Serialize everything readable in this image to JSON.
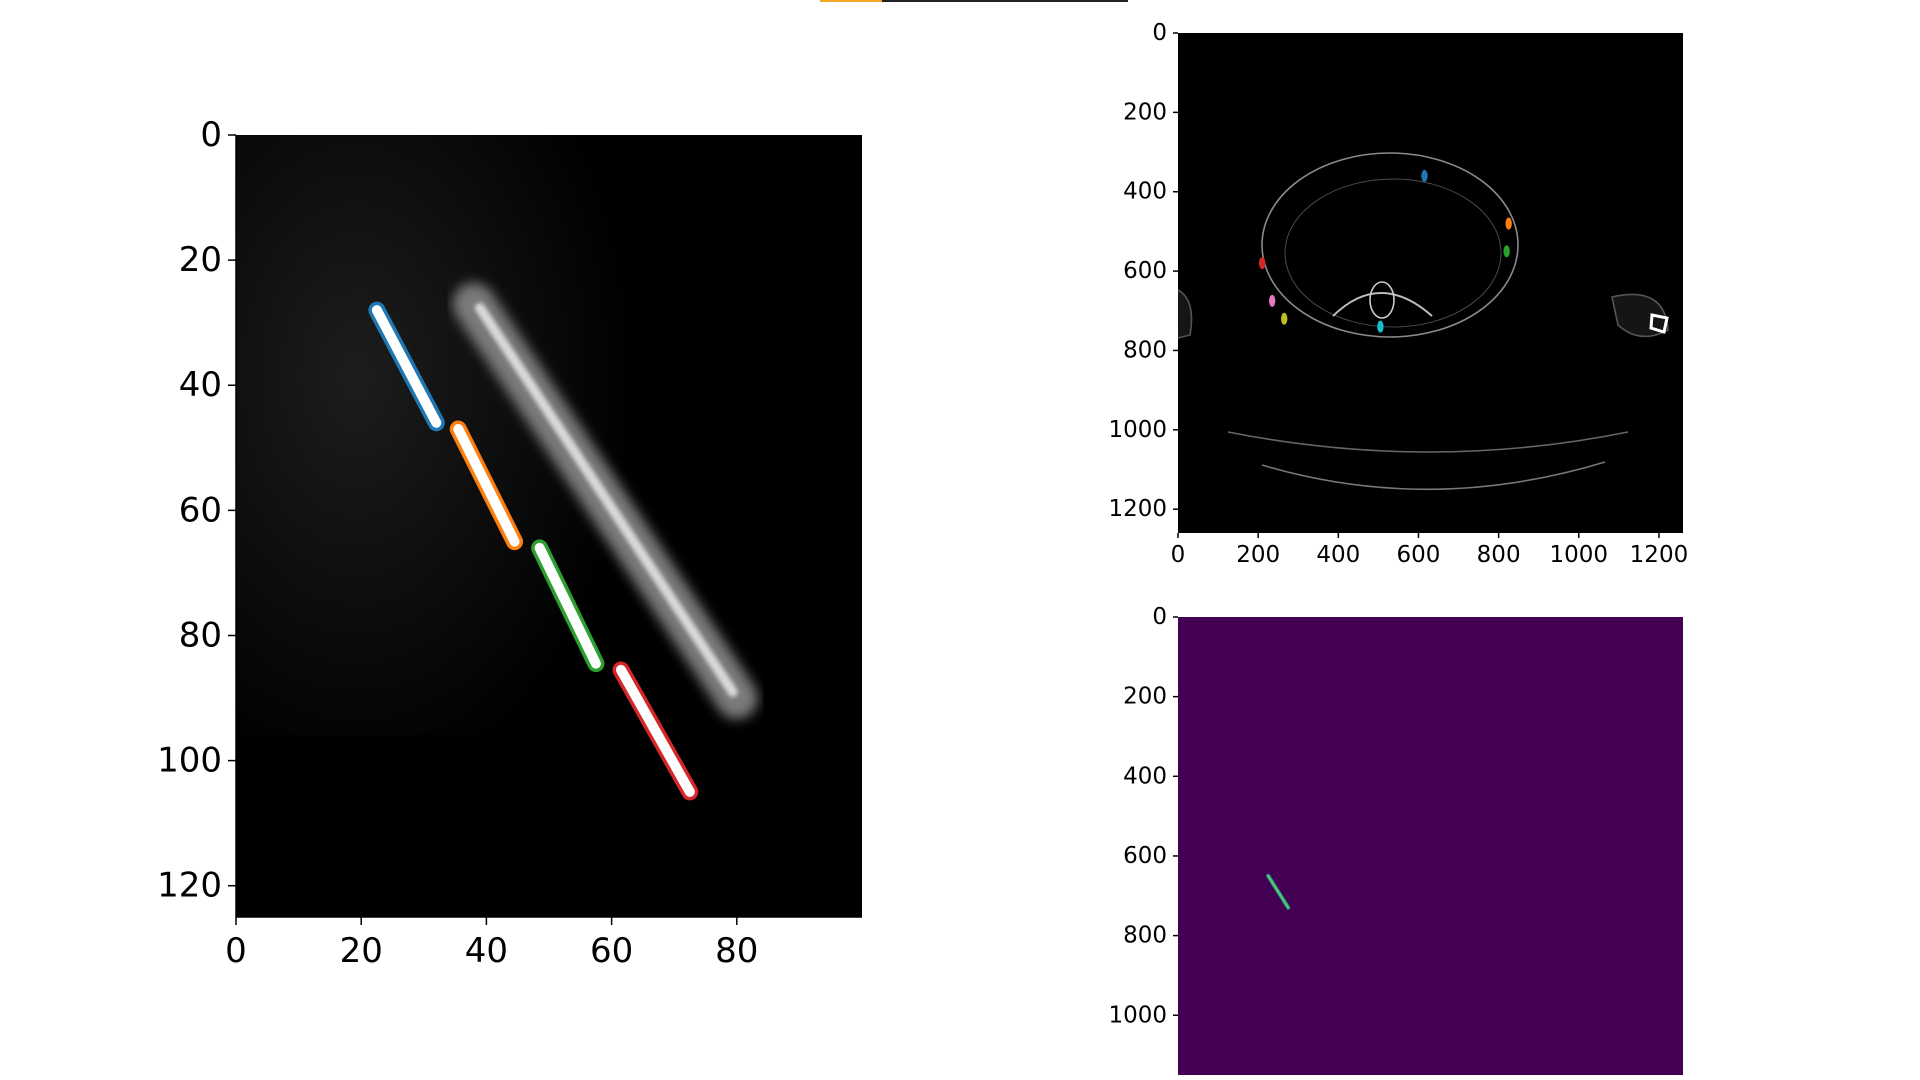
{
  "chart_data": [
    {
      "type": "image",
      "panel": "left",
      "xlim": [
        0,
        100
      ],
      "ylim": [
        125,
        0
      ],
      "xticks": [
        0,
        20,
        40,
        60,
        80
      ],
      "yticks": [
        0,
        20,
        40,
        60,
        80,
        100,
        120
      ],
      "xtick_labels": [
        "0",
        "20",
        "40",
        "60",
        "80"
      ],
      "ytick_labels": [
        "0",
        "20",
        "40",
        "60",
        "80",
        "100",
        "120"
      ],
      "background": "#000000",
      "segments": [
        {
          "color": "#1f77b4",
          "x": [
            22.5,
            32
          ],
          "y": [
            28,
            46
          ]
        },
        {
          "color": "#ff7f0e",
          "x": [
            35.5,
            44.5
          ],
          "y": [
            47,
            65
          ]
        },
        {
          "color": "#2ca02c",
          "x": [
            48.5,
            57.5
          ],
          "y": [
            66,
            84.5
          ]
        },
        {
          "color": "#d62728",
          "x": [
            61.5,
            72.5
          ],
          "y": [
            85.5,
            105
          ]
        }
      ],
      "bone_band": {
        "x": [
          38,
          80
        ],
        "y": [
          27,
          90
        ]
      }
    },
    {
      "type": "image",
      "panel": "top-right",
      "xlim": [
        0,
        1260
      ],
      "ylim": [
        1260,
        0
      ],
      "xticks": [
        0,
        200,
        400,
        600,
        800,
        1000,
        1200
      ],
      "yticks": [
        0,
        200,
        400,
        600,
        800,
        1000,
        1200
      ],
      "xtick_labels": [
        "0",
        "200",
        "400",
        "600",
        "800",
        "1000",
        "1200"
      ],
      "ytick_labels": [
        "0",
        "200",
        "400",
        "600",
        "800",
        "1000",
        "1200"
      ],
      "background": "#000000",
      "markers": [
        {
          "color": "#1f77b4",
          "x": 615,
          "y": 360
        },
        {
          "color": "#ff7f0e",
          "x": 825,
          "y": 480
        },
        {
          "color": "#2ca02c",
          "x": 820,
          "y": 550
        },
        {
          "color": "#d62728",
          "x": 210,
          "y": 580
        },
        {
          "color": "#e377c2",
          "x": 235,
          "y": 675
        },
        {
          "color": "#bcbd22",
          "x": 265,
          "y": 720
        },
        {
          "color": "#17becf",
          "x": 505,
          "y": 740
        }
      ]
    },
    {
      "type": "heatmap",
      "panel": "bottom-right",
      "xlim": [
        0,
        1260
      ],
      "ylim": [
        1150,
        0
      ],
      "yticks": [
        0,
        200,
        400,
        600,
        800,
        1000
      ],
      "ytick_labels": [
        "0",
        "200",
        "400",
        "600",
        "800",
        "1000"
      ],
      "background": "#440154",
      "mask_segment": {
        "color": "#5ec962",
        "x": [
          225,
          275
        ],
        "y": [
          650,
          730
        ]
      }
    }
  ],
  "colors": {
    "top_bar_accent": "#f5a623",
    "top_bar_line": "#222222"
  }
}
